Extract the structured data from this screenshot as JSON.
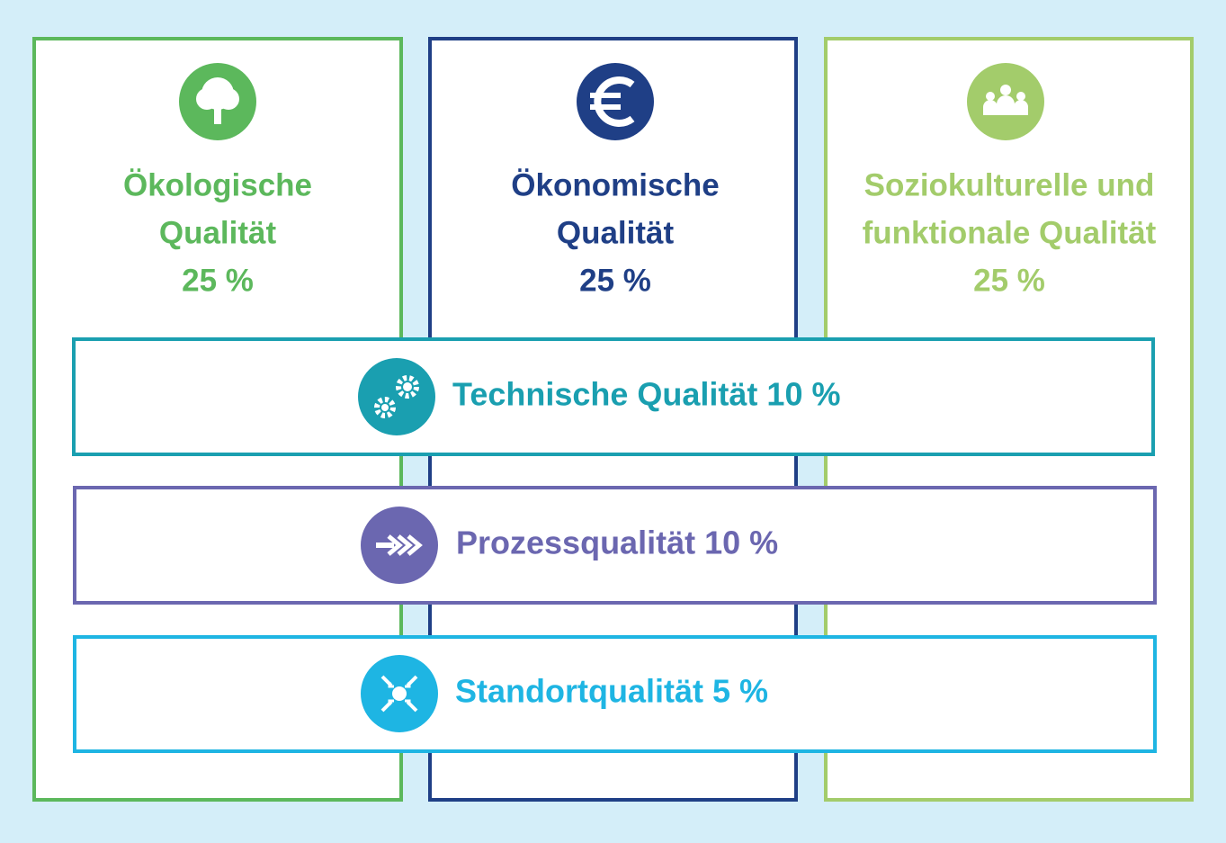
{
  "columns": [
    {
      "lines": [
        "Ökologische",
        "Qualität"
      ],
      "share": "25 %"
    },
    {
      "lines": [
        "Ökonomische",
        "Qualität"
      ],
      "share": "25 %"
    },
    {
      "lines": [
        "Soziokulturelle und",
        "funktionale Qualität"
      ],
      "share": "25 %"
    }
  ],
  "bands": [
    {
      "label": "Technische Qualität 10 %"
    },
    {
      "label": "Prozessqualität 10 %"
    },
    {
      "label": "Standortqualität 5 %"
    }
  ]
}
